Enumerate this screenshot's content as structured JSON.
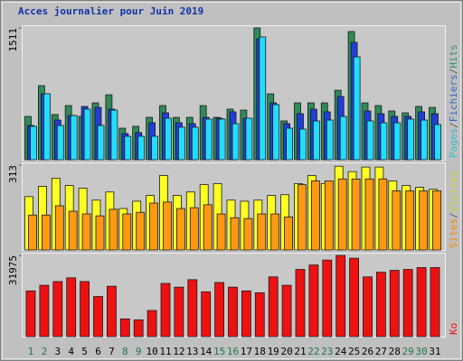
{
  "chart_data": [
    {
      "type": "bar",
      "title": "Acces journalier pour Juin 2019",
      "ylim": [
        0,
        1511
      ],
      "yticks": [
        1511
      ],
      "legend_separator": "/",
      "series": [
        {
          "name": "Hits",
          "color": "#2e8b57",
          "label_color": "#339966",
          "values": [
            497,
            849,
            518,
            621,
            497,
            652,
            745,
            362,
            383,
            486,
            621,
            486,
            486,
            621,
            486,
            580,
            569,
            1511,
            756,
            445,
            652,
            652,
            652,
            797,
            1470,
            652,
            621,
            559,
            538,
            611,
            600
          ]
        },
        {
          "name": "Fichiers",
          "color": "#1f3fd8",
          "label_color": "#3366cc",
          "values": [
            393,
            756,
            455,
            507,
            611,
            600,
            580,
            300,
            311,
            424,
            538,
            424,
            414,
            486,
            476,
            549,
            476,
            1387,
            652,
            414,
            528,
            580,
            549,
            725,
            1346,
            559,
            528,
            497,
            497,
            549,
            528
          ]
        },
        {
          "name": "Pages",
          "color": "#22ddff",
          "label_color": "#33bbcc",
          "values": [
            383,
            756,
            393,
            507,
            580,
            393,
            569,
            269,
            269,
            269,
            476,
            373,
            373,
            466,
            466,
            414,
            476,
            1408,
            632,
            362,
            352,
            445,
            455,
            497,
            1180,
            445,
            424,
            424,
            466,
            455,
            404
          ]
        }
      ]
    },
    {
      "type": "bar",
      "ylim": [
        0,
        313
      ],
      "yticks": [
        313
      ],
      "legend_separator": "/",
      "series": [
        {
          "name": "Visites",
          "color": "#ffff22",
          "label_color": "#cccc33",
          "values": [
            197,
            235,
            265,
            238,
            228,
            184,
            214,
            153,
            180,
            201,
            275,
            201,
            214,
            241,
            245,
            184,
            180,
            184,
            201,
            204,
            245,
            275,
            245,
            309,
            289,
            306,
            306,
            255,
            238,
            231,
            224
          ]
        },
        {
          "name": "Sites",
          "color": "#ff9911",
          "label_color": "#ff8800",
          "values": [
            129,
            129,
            163,
            143,
            133,
            126,
            150,
            133,
            139,
            173,
            177,
            153,
            156,
            167,
            133,
            119,
            116,
            133,
            133,
            122,
            241,
            255,
            255,
            262,
            262,
            262,
            262,
            218,
            218,
            218,
            218
          ]
        }
      ]
    },
    {
      "type": "bar",
      "ylim": [
        0,
        31975
      ],
      "yticks": [
        31975
      ],
      "series": [
        {
          "name": "Ko",
          "color": "#ee1111",
          "label_color": "#ee1111",
          "values": [
            18008,
            20213,
            21683,
            23153,
            21683,
            15803,
            19845,
            6983,
            6615,
            10290,
            20948,
            19478,
            22418,
            17640,
            21315,
            19478,
            18008,
            17273,
            23520,
            20213,
            26460,
            28200,
            30135,
            31975,
            30870,
            23520,
            25358,
            26093,
            26460,
            27195,
            27195
          ]
        }
      ],
      "categories": [
        "1",
        "2",
        "3",
        "4",
        "5",
        "6",
        "7",
        "8",
        "9",
        "10",
        "11",
        "12",
        "13",
        "14",
        "15",
        "16",
        "17",
        "18",
        "19",
        "20",
        "21",
        "22",
        "23",
        "24",
        "25",
        "26",
        "27",
        "28",
        "29",
        "30",
        "31"
      ],
      "category_colors": [
        "#227744",
        "#227744",
        "#000000",
        "#000000",
        "#000000",
        "#000000",
        "#000000",
        "#227744",
        "#227744",
        "#000000",
        "#000000",
        "#000000",
        "#000000",
        "#000000",
        "#227744",
        "#227744",
        "#000000",
        "#000000",
        "#000000",
        "#000000",
        "#000000",
        "#227744",
        "#227744",
        "#000000",
        "#000000",
        "#000000",
        "#000000",
        "#000000",
        "#227744",
        "#227744",
        "#000000"
      ]
    }
  ]
}
